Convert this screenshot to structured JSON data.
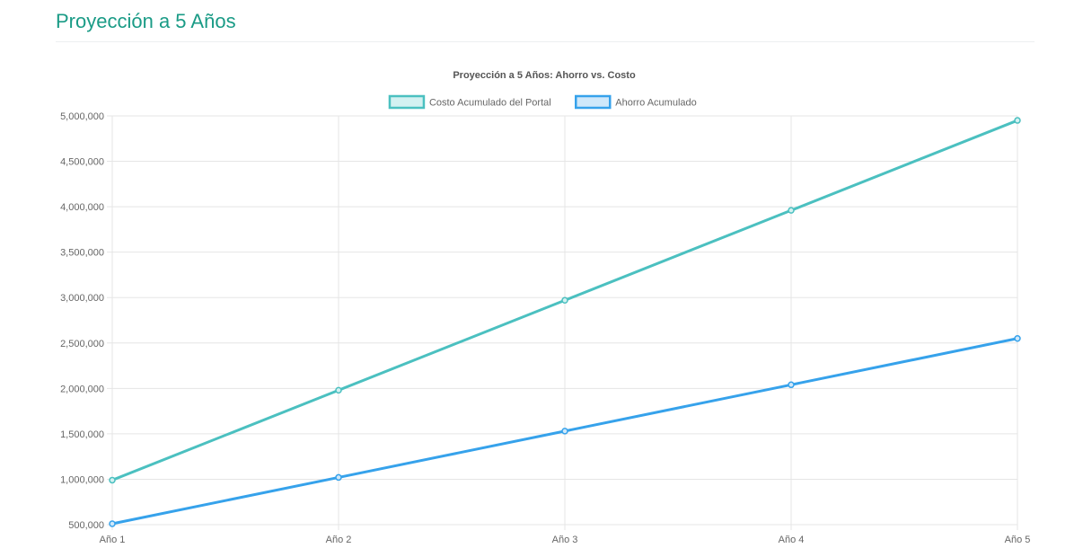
{
  "page": {
    "title": "Proyección a 5 Años"
  },
  "chart_data": {
    "type": "line",
    "title": "Proyección a 5 Años: Ahorro vs. Costo",
    "legend_position": "top",
    "grid": true,
    "categories": [
      "Año 1",
      "Año 2",
      "Año 3",
      "Año 4",
      "Año 5"
    ],
    "y_ticks": [
      "500,000",
      "1,000,000",
      "1,500,000",
      "2,000,000",
      "2,500,000",
      "3,000,000",
      "3,500,000",
      "4,000,000",
      "4,500,000",
      "5,000,000"
    ],
    "ylim": [
      500000,
      5000000
    ],
    "series": [
      {
        "name": "Costo Acumulado del Portal",
        "color": "#4bc0c0",
        "fill": "#d3f1f1",
        "values": [
          990000,
          1980000,
          2970000,
          3960000,
          4950000
        ]
      },
      {
        "name": "Ahorro Acumulado",
        "color": "#36a2eb",
        "fill": "#cfe8fa",
        "values": [
          510000,
          1020000,
          1530000,
          2040000,
          2550000
        ]
      }
    ]
  }
}
